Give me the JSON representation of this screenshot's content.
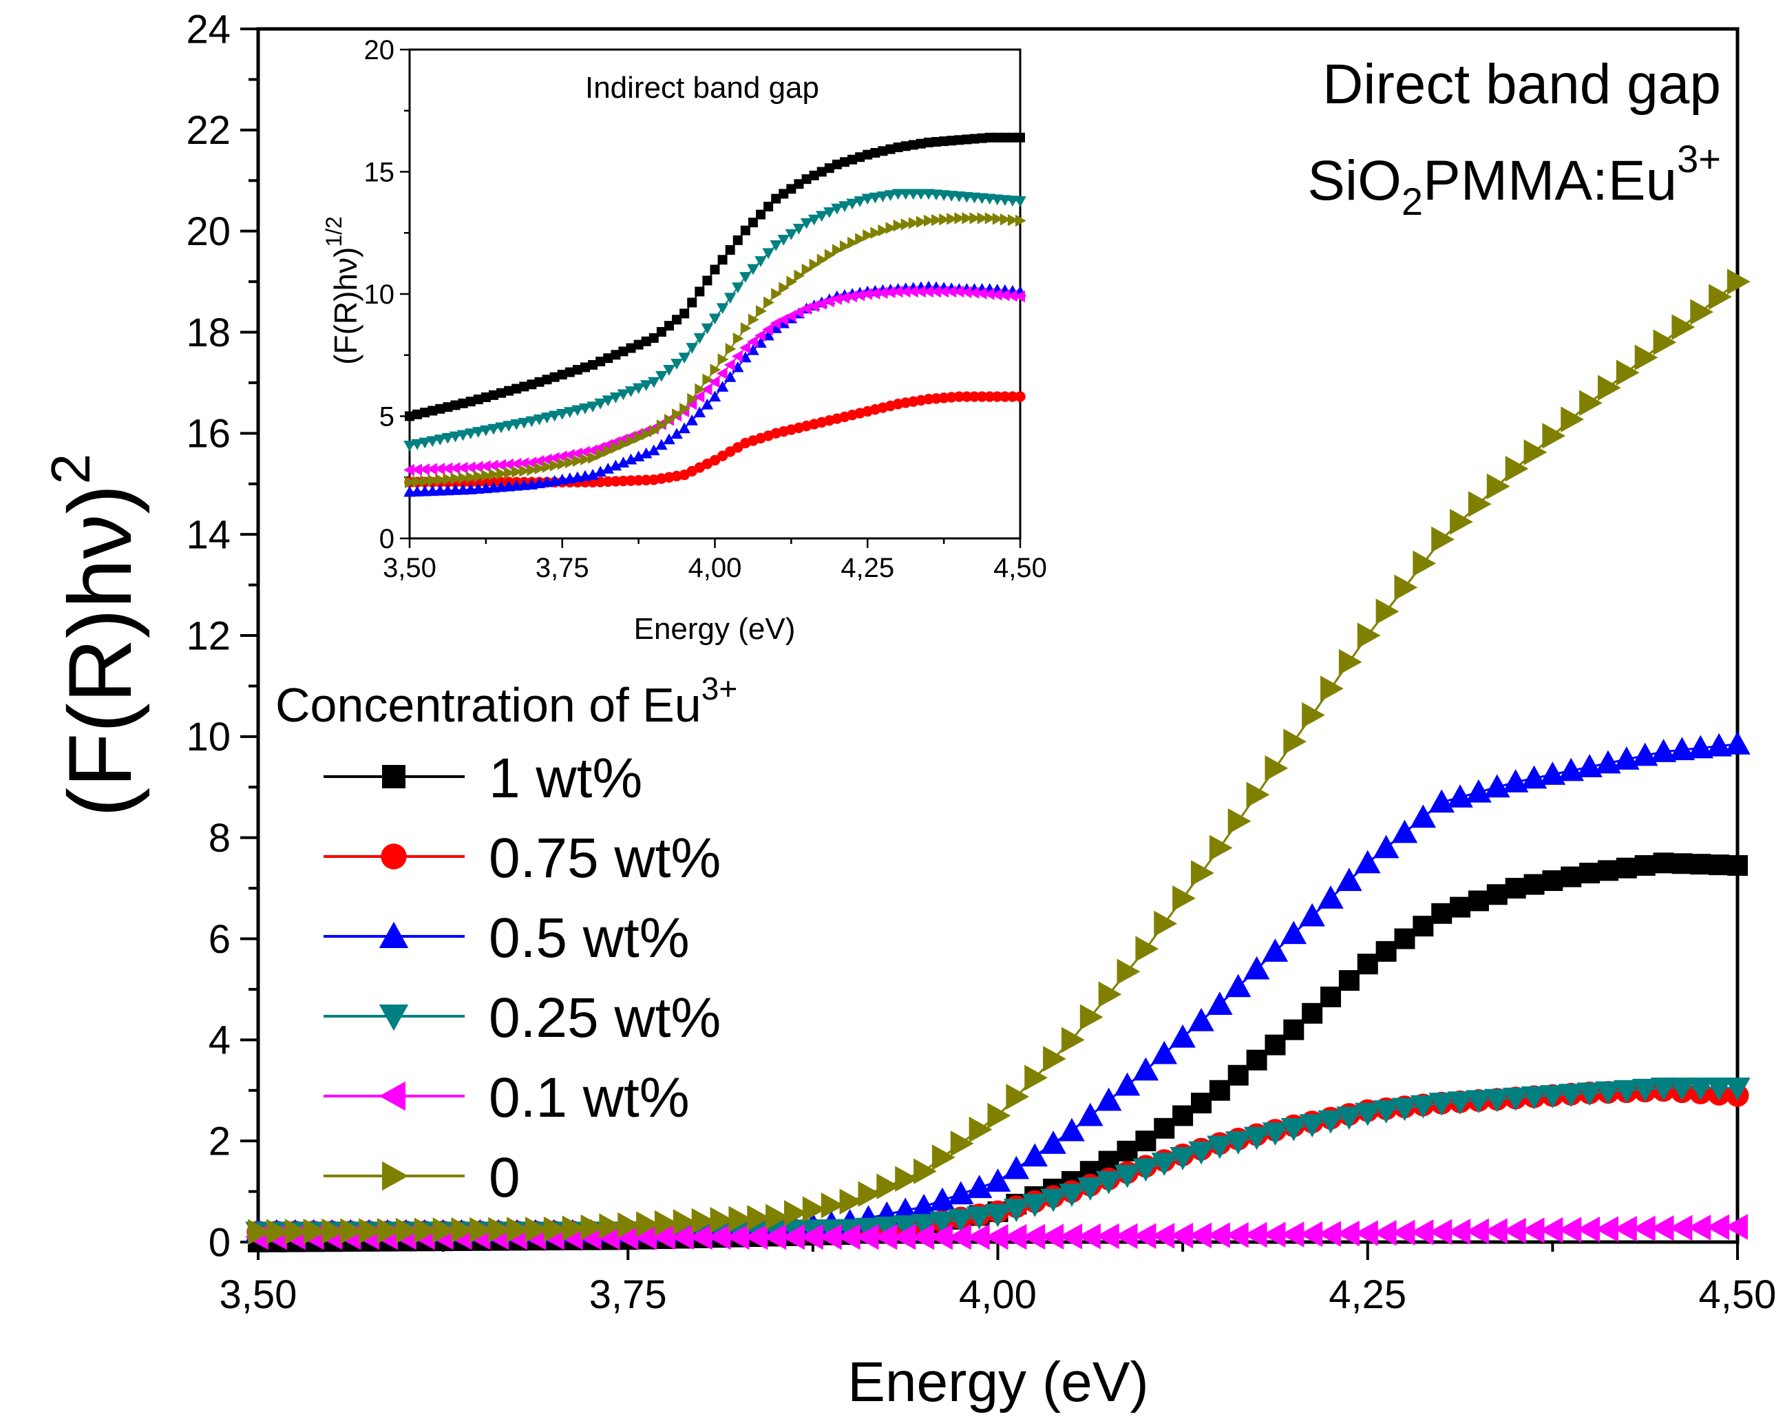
{
  "chart_data": [
    {
      "type": "scatter",
      "role": "main",
      "xlabel": "Energy (eV)",
      "ylabel": "(F(R)hν)",
      "ylabel_superscript": "2",
      "xlim": [
        3.5,
        4.5
      ],
      "ylim": [
        0,
        24
      ],
      "x_ticks": [
        "3,50",
        "3,75",
        "4,00",
        "4,25",
        "4,50"
      ],
      "y_ticks": [
        "0",
        "2",
        "4",
        "6",
        "8",
        "10",
        "12",
        "14",
        "16",
        "18",
        "20",
        "22",
        "24"
      ],
      "annotation_title": "Direct band gap",
      "annotation_material": "SiO",
      "annotation_material_sub": "2",
      "annotation_material_rest": "PMMA:Eu",
      "annotation_material_sup": "3+",
      "legend_title": "Concentration of Eu",
      "legend_title_sup": "3+",
      "legend_position": "left",
      "series": [
        {
          "name": "1 wt%",
          "marker": "square",
          "color": "#000000",
          "x": [
            3.5,
            3.75,
            3.9,
            3.95,
            4.0,
            4.05,
            4.1,
            4.15,
            4.2,
            4.25,
            4.3,
            4.35,
            4.4,
            4.45,
            4.5
          ],
          "y": [
            0.0,
            0.05,
            0.15,
            0.3,
            0.6,
            1.2,
            2.0,
            3.0,
            4.2,
            5.5,
            6.5,
            7.0,
            7.3,
            7.5,
            7.45
          ]
        },
        {
          "name": "0.75 wt%",
          "marker": "circle",
          "color": "#ff0000",
          "x": [
            3.5,
            3.75,
            3.9,
            3.95,
            4.0,
            4.05,
            4.1,
            4.15,
            4.2,
            4.25,
            4.3,
            4.35,
            4.4,
            4.45,
            4.5
          ],
          "y": [
            0.2,
            0.2,
            0.25,
            0.35,
            0.6,
            1.0,
            1.5,
            1.95,
            2.3,
            2.6,
            2.75,
            2.85,
            2.95,
            3.0,
            2.9
          ]
        },
        {
          "name": "0.5 wt%",
          "marker": "triangle-up",
          "color": "#0000ff",
          "x": [
            3.5,
            3.75,
            3.85,
            3.9,
            3.95,
            4.0,
            4.05,
            4.1,
            4.15,
            4.2,
            4.25,
            4.3,
            4.35,
            4.4,
            4.45,
            4.5
          ],
          "y": [
            0.2,
            0.2,
            0.25,
            0.4,
            0.7,
            1.2,
            2.2,
            3.4,
            4.7,
            6.1,
            7.5,
            8.7,
            9.1,
            9.4,
            9.7,
            9.85
          ]
        },
        {
          "name": "0.25 wt%",
          "marker": "triangle-down",
          "color": "#008080",
          "x": [
            3.5,
            3.75,
            3.9,
            3.95,
            4.0,
            4.05,
            4.1,
            4.15,
            4.2,
            4.25,
            4.3,
            4.35,
            4.4,
            4.45,
            4.5
          ],
          "y": [
            0.2,
            0.2,
            0.25,
            0.35,
            0.55,
            0.95,
            1.45,
            1.9,
            2.25,
            2.55,
            2.75,
            2.85,
            2.95,
            3.05,
            3.05
          ]
        },
        {
          "name": "0.1 wt%",
          "marker": "triangle-left",
          "color": "#ff00ff",
          "x": [
            3.5,
            3.75,
            3.9,
            4.0,
            4.1,
            4.2,
            4.3,
            4.4,
            4.5
          ],
          "y": [
            0.1,
            0.1,
            0.1,
            0.1,
            0.12,
            0.15,
            0.2,
            0.25,
            0.3
          ]
        },
        {
          "name": "0",
          "marker": "triangle-right",
          "color": "#808000",
          "x": [
            3.5,
            3.7,
            3.85,
            3.9,
            3.95,
            4.0,
            4.05,
            4.1,
            4.15,
            4.2,
            4.25,
            4.3,
            4.35,
            4.4,
            4.45,
            4.5
          ],
          "y": [
            0.2,
            0.25,
            0.5,
            0.8,
            1.4,
            2.5,
            4.0,
            5.8,
            7.8,
            9.9,
            12.0,
            13.9,
            15.3,
            16.6,
            17.8,
            19.0
          ]
        }
      ]
    },
    {
      "type": "scatter",
      "role": "inset",
      "title": "Indirect band gap",
      "xlabel": "Energy (eV)",
      "ylabel": "(F(R)hν)",
      "ylabel_superscript": "1/2",
      "xlim": [
        3.5,
        4.5
      ],
      "ylim": [
        0,
        20
      ],
      "x_ticks": [
        "3,50",
        "3,75",
        "4,00",
        "4,25",
        "4,50"
      ],
      "y_ticks": [
        "0",
        "5",
        "10",
        "15",
        "20"
      ],
      "series": [
        {
          "name": "1 wt%",
          "marker": "square",
          "color": "#000000",
          "x": [
            3.5,
            3.6,
            3.7,
            3.8,
            3.9,
            3.95,
            4.0,
            4.05,
            4.1,
            4.15,
            4.2,
            4.25,
            4.3,
            4.35,
            4.4,
            4.45,
            4.5
          ],
          "y": [
            5.0,
            5.6,
            6.3,
            7.1,
            8.2,
            9.2,
            11.0,
            12.6,
            13.9,
            14.7,
            15.3,
            15.7,
            16.0,
            16.2,
            16.3,
            16.4,
            16.4
          ]
        },
        {
          "name": "0.75 wt%",
          "marker": "circle",
          "color": "#ff0000",
          "x": [
            3.5,
            3.6,
            3.7,
            3.8,
            3.9,
            3.95,
            4.0,
            4.05,
            4.1,
            4.15,
            4.2,
            4.25,
            4.3,
            4.35,
            4.4,
            4.45,
            4.5
          ],
          "y": [
            2.3,
            2.3,
            2.3,
            2.3,
            2.4,
            2.6,
            3.2,
            3.9,
            4.3,
            4.6,
            4.9,
            5.2,
            5.5,
            5.7,
            5.8,
            5.8,
            5.8
          ]
        },
        {
          "name": "0.5 wt%",
          "marker": "triangle-up",
          "color": "#0000ff",
          "x": [
            3.5,
            3.6,
            3.7,
            3.8,
            3.9,
            3.95,
            4.0,
            4.05,
            4.1,
            4.15,
            4.2,
            4.25,
            4.3,
            4.35,
            4.4,
            4.45,
            4.5
          ],
          "y": [
            1.9,
            2.0,
            2.2,
            2.6,
            3.6,
            4.5,
            5.8,
            7.4,
            8.6,
            9.4,
            9.9,
            10.1,
            10.2,
            10.3,
            10.2,
            10.2,
            10.1
          ]
        },
        {
          "name": "0.25 wt%",
          "marker": "triangle-down",
          "color": "#008080",
          "x": [
            3.5,
            3.6,
            3.7,
            3.8,
            3.9,
            3.95,
            4.0,
            4.05,
            4.1,
            4.15,
            4.2,
            4.25,
            4.3,
            4.35,
            4.4,
            4.45,
            4.5
          ],
          "y": [
            3.8,
            4.3,
            4.8,
            5.4,
            6.4,
            7.4,
            9.0,
            10.7,
            12.0,
            12.9,
            13.5,
            13.9,
            14.1,
            14.1,
            14.0,
            13.9,
            13.8
          ]
        },
        {
          "name": "0.1 wt%",
          "marker": "triangle-left",
          "color": "#ff00ff",
          "x": [
            3.5,
            3.6,
            3.7,
            3.8,
            3.9,
            3.95,
            4.0,
            4.05,
            4.1,
            4.15,
            4.2,
            4.25,
            4.3,
            4.35,
            4.4,
            4.45,
            4.5
          ],
          "y": [
            2.8,
            2.9,
            3.1,
            3.6,
            4.5,
            5.2,
            6.4,
            7.8,
            8.8,
            9.4,
            9.8,
            10.0,
            10.1,
            10.1,
            10.1,
            10.0,
            9.9
          ]
        },
        {
          "name": "0",
          "marker": "triangle-right",
          "color": "#808000",
          "x": [
            3.5,
            3.6,
            3.7,
            3.8,
            3.9,
            3.95,
            4.0,
            4.05,
            4.1,
            4.15,
            4.2,
            4.25,
            4.3,
            4.35,
            4.4,
            4.45,
            4.5
          ],
          "y": [
            2.3,
            2.5,
            2.8,
            3.3,
            4.4,
            5.3,
            6.9,
            8.6,
            10.0,
            11.0,
            11.8,
            12.4,
            12.8,
            13.0,
            13.1,
            13.1,
            13.0
          ]
        }
      ]
    }
  ]
}
